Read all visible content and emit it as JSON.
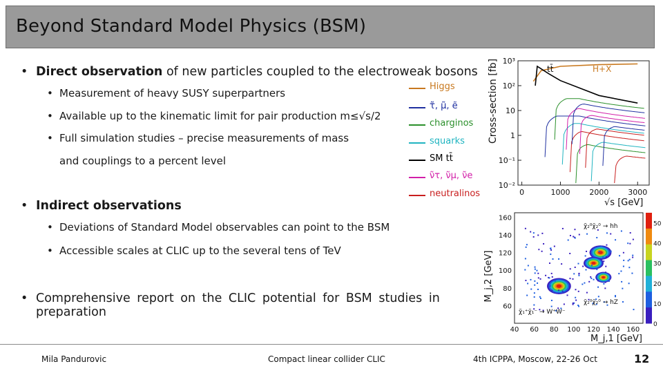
{
  "slide": {
    "title": "Beyond Standard Model Physics (BSM)",
    "bullets": {
      "direct_prefix": "Direct observation",
      "direct_suffix": " of new particles coupled to the electroweak bosons",
      "direct_sub": [
        "Measurement of heavy SUSY superpartners",
        "Available up to the kinematic limit for pair production m≤√s/2",
        "Full simulation studies – precise measurements of mass",
        "and couplings to a percent level"
      ],
      "indirect": "Indirect observations",
      "indirect_sub": [
        "Deviations of Standard Model observables can point to the BSM",
        "Accessible scales at CLIC up to the several tens of TeV"
      ],
      "report_line1": "Comprehensive report on the CLIC potential for BSM studies in",
      "report_line2": "preparation"
    },
    "footer": {
      "author": "Mila Pandurovic",
      "center": "Compact linear collider CLIC",
      "right": "4th ICPPA, Moscow, 22-26 Oct",
      "page": "12"
    }
  },
  "legend": [
    {
      "label": "Higgs",
      "color": "#c8781e"
    },
    {
      "label": "τ̃, μ̃, ẽ",
      "color": "#1e2fa0"
    },
    {
      "label": "charginos",
      "color": "#2a8f2a"
    },
    {
      "label": "squarks",
      "color": "#1fb4c0"
    },
    {
      "label": "SM tt̄",
      "color": "#000000"
    },
    {
      "label": "ν̃τ, ν̃μ, ν̃e",
      "color": "#d21fa8"
    },
    {
      "label": "neutralinos",
      "color": "#c81e1e"
    }
  ],
  "chart_data": [
    {
      "type": "line",
      "title": "",
      "ylabel": "Cross-section [fb]",
      "xlabel": "√s [GeV]",
      "x_ticks": [
        "0",
        "1000",
        "2000",
        "3000"
      ],
      "y_ticks": [
        "10³",
        "10²",
        "10",
        "1",
        "10⁻¹",
        "10⁻²"
      ],
      "ylim": [
        0.01,
        1000
      ],
      "log_y": true,
      "annotations": [
        "tt̄",
        "H+X"
      ],
      "series": [
        {
          "name": "Higgs",
          "color": "#c8781e",
          "x": [
            300,
            500,
            1000,
            2000,
            3000
          ],
          "y": [
            150,
            400,
            600,
            700,
            750
          ]
        },
        {
          "name": "SM tt̄",
          "color": "#000000",
          "x": [
            350,
            400,
            700,
            1000,
            2000,
            3000
          ],
          "y": [
            100,
            600,
            300,
            160,
            40,
            20
          ]
        }
      ]
    },
    {
      "type": "heatmap",
      "ylabel": "M_j,2 [GeV]",
      "xlabel": "M_j,1 [GeV]",
      "x_ticks": [
        "40",
        "60",
        "80",
        "100",
        "120",
        "140",
        "160"
      ],
      "y_ticks": [
        "60",
        "80",
        "100",
        "120",
        "140",
        "160"
      ],
      "colorbar_ticks": [
        "0",
        "10",
        "20",
        "30",
        "40",
        "50"
      ],
      "annotations": [
        "χ̃₂⁰χ̃₂⁰ → hh",
        "χ̃₂⁰χ̃₂⁰ → hZ",
        "χ̃₁⁺χ̃₁⁻ → W⁺W⁻"
      ]
    }
  ]
}
